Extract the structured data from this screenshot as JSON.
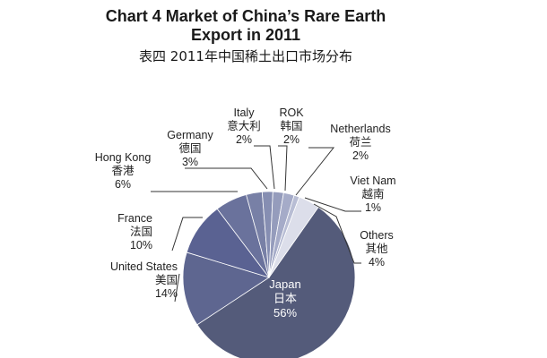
{
  "chart_data": {
    "type": "pie",
    "title": "Chart 4 Market of China’s Rare Earth Export in 2011",
    "title_line1": "Chart 4 Market of China’s Rare Earth",
    "title_line2": "Export in 2011",
    "subtitle": "表四 2011年中国稀土出口市场分布",
    "slices": [
      {
        "name": "Japan",
        "name_cn": "日本",
        "value": 56,
        "label": "56%",
        "color": "#545b7a"
      },
      {
        "name": "United States",
        "name_cn": "美国",
        "value": 14,
        "label": "14%",
        "color": "#5e6690"
      },
      {
        "name": "France",
        "name_cn": "法国",
        "value": 10,
        "label": "10%",
        "color": "#5a6292"
      },
      {
        "name": "Hong Kong",
        "name_cn": "香港",
        "value": 6,
        "label": "6%",
        "color": "#6a729c"
      },
      {
        "name": "Germany",
        "name_cn": "德国",
        "value": 3,
        "label": "3%",
        "color": "#7880a6"
      },
      {
        "name": "Italy",
        "name_cn": "意大利",
        "value": 2,
        "label": "2%",
        "color": "#868eb2"
      },
      {
        "name": "ROK",
        "name_cn": "韩国",
        "value": 2,
        "label": "2%",
        "color": "#959cbc"
      },
      {
        "name": "Netherlands",
        "name_cn": "荷兰",
        "value": 2,
        "label": "2%",
        "color": "#a5abc8"
      },
      {
        "name": "Viet Nam",
        "name_cn": "越南",
        "value": 1,
        "label": "1%",
        "color": "#b8bdd4"
      },
      {
        "name": "Others",
        "name_cn": "其他",
        "value": 4,
        "label": "4%",
        "color": "#dcdeea"
      }
    ]
  }
}
